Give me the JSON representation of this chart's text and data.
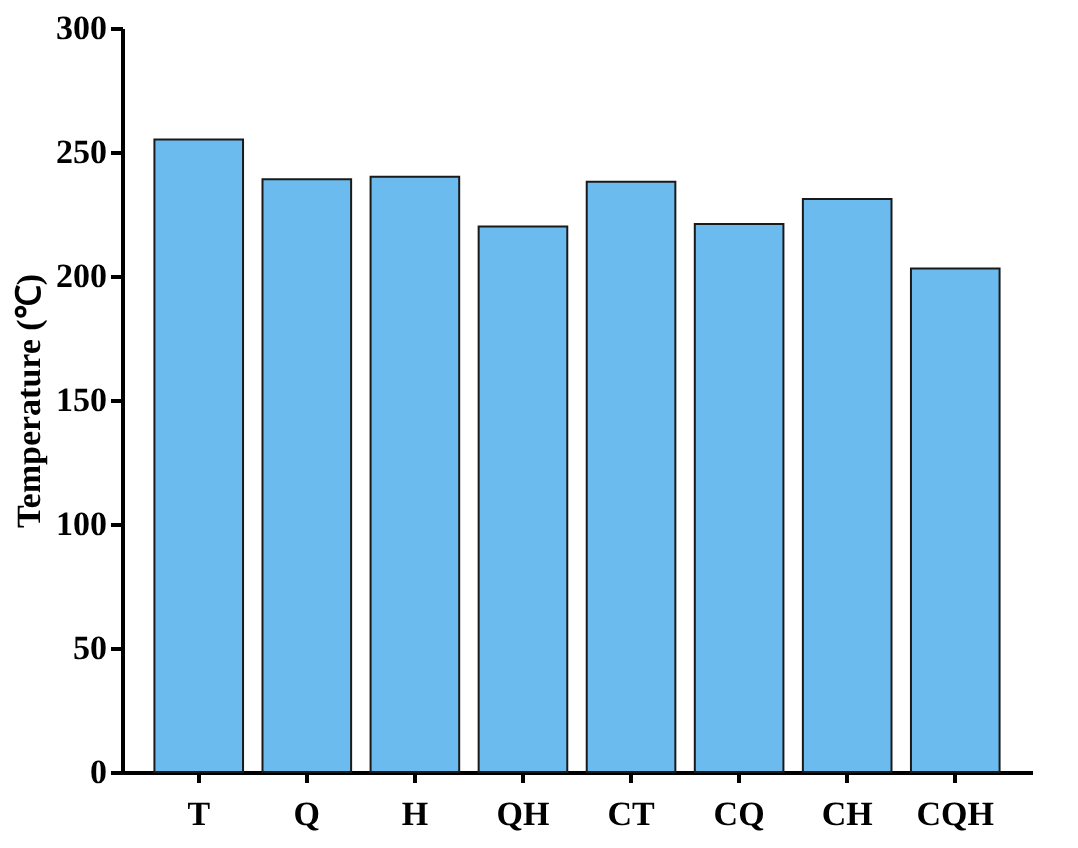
{
  "chart_data": {
    "type": "bar",
    "ylabel": "Temperature (℃)",
    "categories": [
      "T",
      "Q",
      "H",
      "QH",
      "CT",
      "CQ",
      "CH",
      "CQH"
    ],
    "values": [
      255,
      239,
      240,
      220,
      238,
      221,
      231,
      203
    ],
    "color": "#6bbbee",
    "ylim": [
      0,
      300
    ],
    "yticks": [
      0,
      50,
      100,
      150,
      200,
      250,
      300
    ],
    "grid": false
  }
}
